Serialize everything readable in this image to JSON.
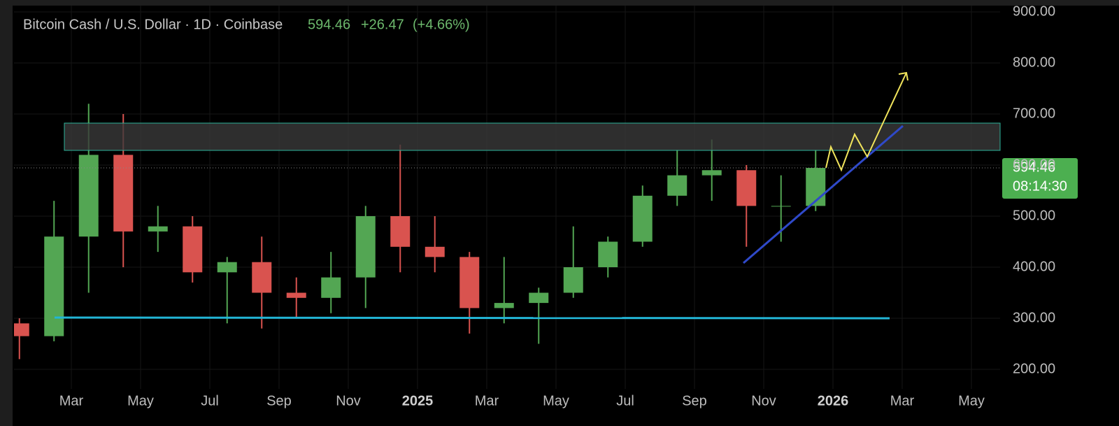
{
  "chart_data": {
    "type": "candlestick",
    "title": "Bitcoin Cash / U.S. Dollar · 1D · Coinbase",
    "last_price": 594.46,
    "change": {
      "value": 26.47,
      "label": "+26.47"
    },
    "change_percent": {
      "value": 4.66,
      "label": "(+4.66%)"
    },
    "countdown": "08:14:30",
    "x": [
      "2024-01",
      "2024-02",
      "2024-03",
      "2024-04",
      "2024-05",
      "2024-06",
      "2024-07",
      "2024-08",
      "2024-09",
      "2024-10",
      "2024-11",
      "2024-12",
      "2025-01",
      "2025-02",
      "2025-03",
      "2025-04",
      "2025-05",
      "2025-06",
      "2025-07",
      "2025-08",
      "2025-09",
      "2025-10",
      "2025-11",
      "2025-12"
    ],
    "open": [
      290,
      265,
      460,
      620,
      470,
      480,
      390,
      410,
      350,
      340,
      380,
      500,
      440,
      420,
      320,
      330,
      350,
      400,
      450,
      540,
      580,
      590,
      520,
      520
    ],
    "high": [
      300,
      530,
      720,
      700,
      520,
      500,
      420,
      460,
      380,
      430,
      520,
      640,
      500,
      430,
      420,
      360,
      480,
      460,
      560,
      630,
      650,
      600,
      580,
      630
    ],
    "low": [
      220,
      255,
      350,
      400,
      430,
      370,
      290,
      280,
      300,
      310,
      320,
      390,
      390,
      270,
      290,
      250,
      340,
      380,
      440,
      520,
      530,
      440,
      450,
      510
    ],
    "close": [
      265,
      460,
      620,
      470,
      480,
      390,
      410,
      350,
      340,
      380,
      500,
      440,
      420,
      320,
      330,
      350,
      400,
      450,
      540,
      580,
      590,
      520,
      520,
      594.46
    ],
    "up_color": "#53a653",
    "down_color": "#d9534f",
    "xlim": [
      "2024-01",
      "2026-06"
    ],
    "xticks": [
      {
        "value": "2024-03",
        "label": "Mar"
      },
      {
        "value": "2024-05",
        "label": "May"
      },
      {
        "value": "2024-07",
        "label": "Jul"
      },
      {
        "value": "2024-09",
        "label": "Sep"
      },
      {
        "value": "2024-11",
        "label": "Nov"
      },
      {
        "value": "2025-01",
        "label": "2025"
      },
      {
        "value": "2025-03",
        "label": "Mar"
      },
      {
        "value": "2025-05",
        "label": "May"
      },
      {
        "value": "2025-07",
        "label": "Jul"
      },
      {
        "value": "2025-09",
        "label": "Sep"
      },
      {
        "value": "2025-11",
        "label": "Nov"
      },
      {
        "value": "2026-01",
        "label": "2026"
      },
      {
        "value": "2026-03",
        "label": "Mar"
      },
      {
        "value": "2026-05",
        "label": "May"
      }
    ],
    "ylim": [
      200,
      900
    ],
    "yticks": [
      {
        "value": 200,
        "label": "200.00"
      },
      {
        "value": 300,
        "label": "300.00"
      },
      {
        "value": 400,
        "label": "400.00"
      },
      {
        "value": 500,
        "label": "500.00"
      },
      {
        "value": 600,
        "label": "600.00"
      },
      {
        "value": 700,
        "label": "700.00"
      },
      {
        "value": 800,
        "label": "800.00"
      },
      {
        "value": 900,
        "label": "900.00"
      }
    ],
    "grid": true
  }
}
